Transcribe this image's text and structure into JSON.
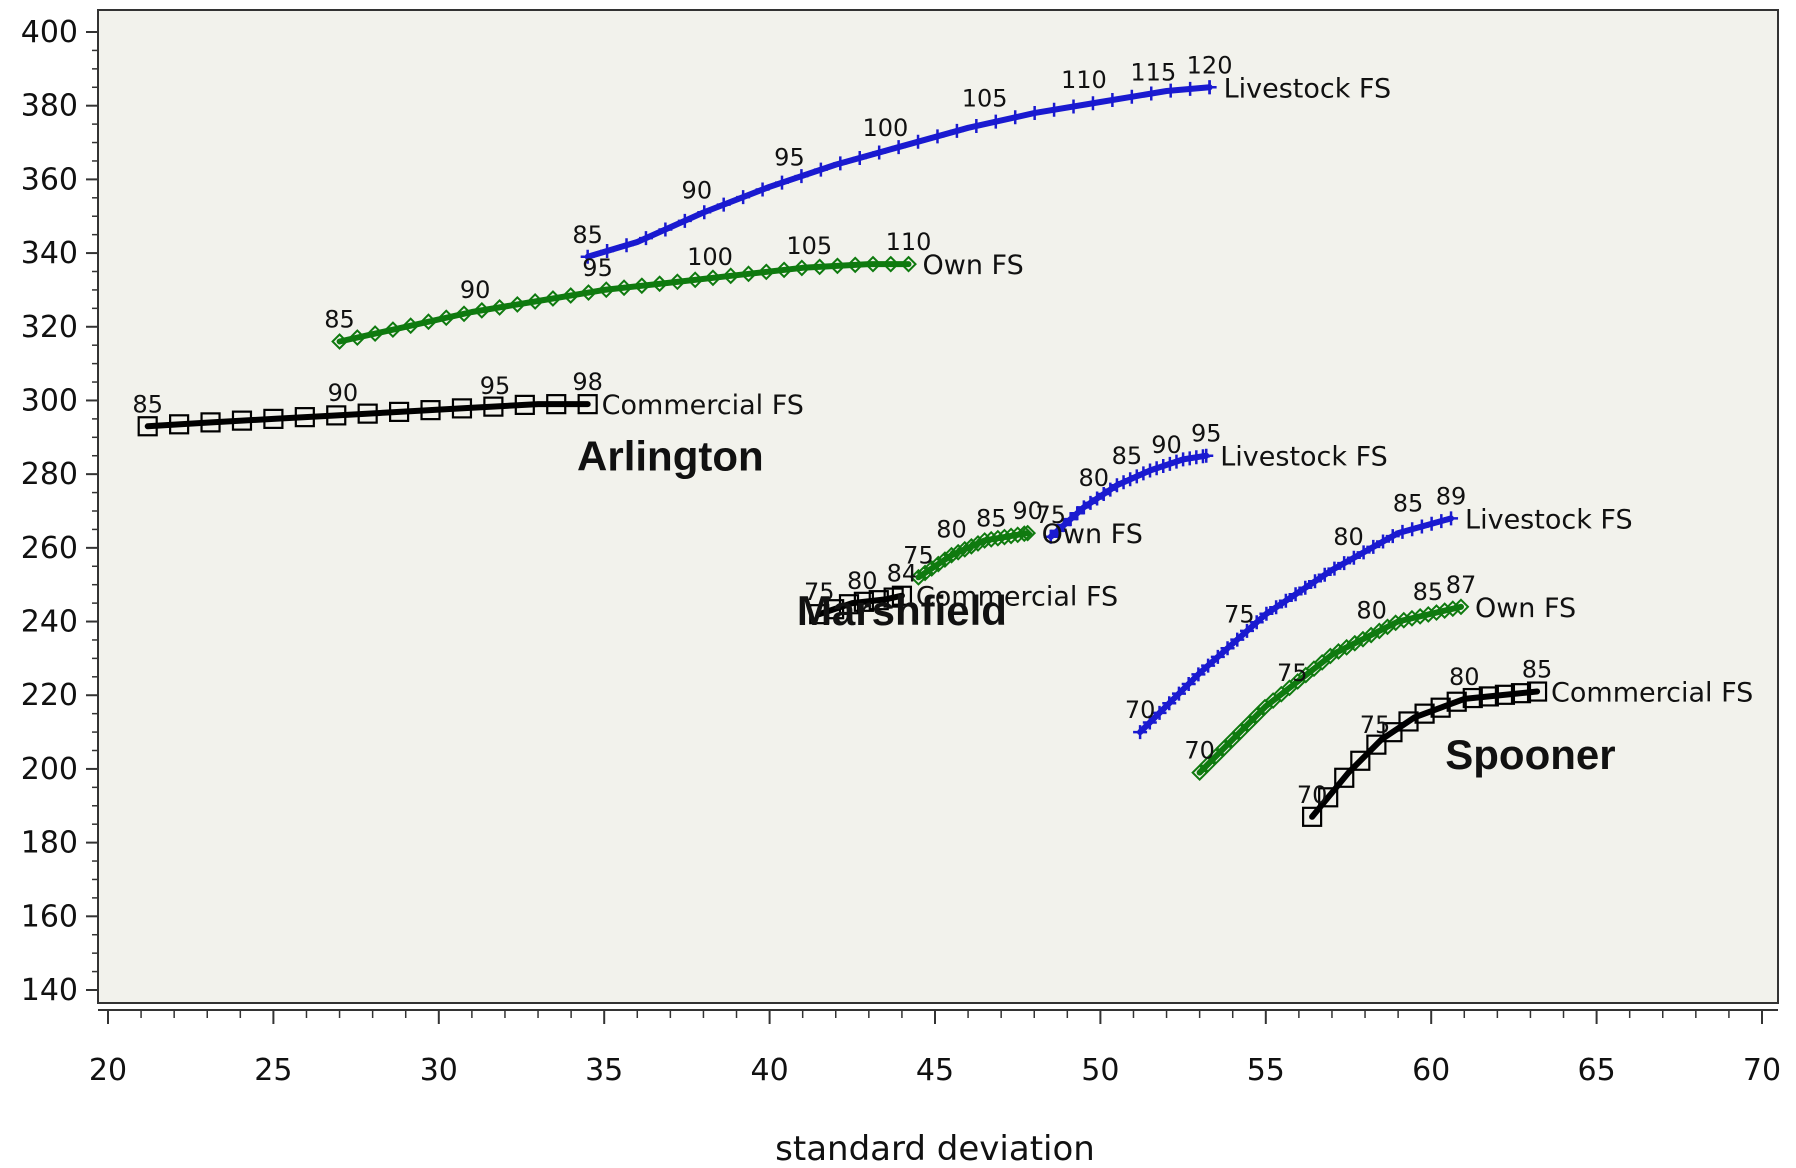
{
  "chart_data": {
    "type": "line",
    "xlabel": "standard deviation",
    "ylabel": "",
    "xlim": [
      20,
      70
    ],
    "ylim": [
      140,
      400
    ],
    "x_ticks": [
      "20",
      "25",
      "30",
      "35",
      "40",
      "45",
      "50",
      "55",
      "60",
      "65",
      "70"
    ],
    "y_ticks": [
      "140",
      "160",
      "180",
      "200",
      "220",
      "240",
      "260",
      "280",
      "300",
      "320",
      "340",
      "360",
      "380",
      "400"
    ],
    "grid": false,
    "colors": {
      "livestock": "#1a1ad0",
      "own": "#0f7a0f",
      "commercial": "#000000",
      "background": "#f2f2ec"
    },
    "stations": [
      {
        "name": "Arlington",
        "label_anchor": [
          37,
          281
        ]
      },
      {
        "name": "Marshfield",
        "label_anchor": [
          44,
          239
        ]
      },
      {
        "name": "Spooner",
        "label_anchor": [
          63,
          200
        ]
      }
    ],
    "series": [
      {
        "name": "Livestock FS",
        "group": "Arlington",
        "color_key": "livestock",
        "marker": "plus",
        "points": [
          [
            34.5,
            339
          ],
          [
            36,
            343
          ],
          [
            38,
            351
          ],
          [
            40,
            358
          ],
          [
            42,
            364
          ],
          [
            44,
            369
          ],
          [
            46,
            374
          ],
          [
            48,
            378
          ],
          [
            50,
            381
          ],
          [
            52,
            384
          ],
          [
            53.3,
            385
          ]
        ],
        "labels": [
          {
            "text": "85",
            "x": 34.5,
            "y": 339
          },
          {
            "text": "90",
            "x": 37.8,
            "y": 351
          },
          {
            "text": "95",
            "x": 40.6,
            "y": 360
          },
          {
            "text": "100",
            "x": 43.5,
            "y": 368
          },
          {
            "text": "105",
            "x": 46.5,
            "y": 376
          },
          {
            "text": "110",
            "x": 49.5,
            "y": 381
          },
          {
            "text": "115",
            "x": 51.6,
            "y": 383
          },
          {
            "text": "120",
            "x": 53.3,
            "y": 385
          }
        ]
      },
      {
        "name": "Own FS",
        "group": "Arlington",
        "color_key": "own",
        "marker": "diamond",
        "points": [
          [
            27,
            316
          ],
          [
            29,
            320
          ],
          [
            31,
            324
          ],
          [
            33,
            327
          ],
          [
            35,
            330
          ],
          [
            37,
            332
          ],
          [
            39,
            334
          ],
          [
            41,
            336
          ],
          [
            43,
            337
          ],
          [
            44.2,
            337
          ]
        ],
        "labels": [
          {
            "text": "85",
            "x": 27,
            "y": 316
          },
          {
            "text": "90",
            "x": 31.1,
            "y": 324
          },
          {
            "text": "95",
            "x": 34.8,
            "y": 330
          },
          {
            "text": "100",
            "x": 38.2,
            "y": 333
          },
          {
            "text": "105",
            "x": 41.2,
            "y": 336
          },
          {
            "text": "110",
            "x": 44.2,
            "y": 337
          }
        ]
      },
      {
        "name": "Commercial FS",
        "group": "Arlington",
        "color_key": "commercial",
        "marker": "square",
        "points": [
          [
            21.2,
            293
          ],
          [
            23,
            294
          ],
          [
            25,
            295
          ],
          [
            27,
            296
          ],
          [
            29,
            297
          ],
          [
            31,
            298
          ],
          [
            33,
            299
          ],
          [
            34.5,
            299
          ]
        ],
        "labels": [
          {
            "text": "85",
            "x": 21.2,
            "y": 293
          },
          {
            "text": "90",
            "x": 27.1,
            "y": 296
          },
          {
            "text": "95",
            "x": 31.7,
            "y": 298
          },
          {
            "text": "98",
            "x": 34.5,
            "y": 299
          }
        ]
      },
      {
        "name": "Livestock FS",
        "group": "Marshfield",
        "color_key": "livestock",
        "marker": "plus",
        "points": [
          [
            48.5,
            263
          ],
          [
            49.5,
            271
          ],
          [
            50.5,
            277
          ],
          [
            51.5,
            281
          ],
          [
            52.5,
            284
          ],
          [
            53.2,
            285
          ]
        ],
        "labels": [
          {
            "text": "75",
            "x": 48.5,
            "y": 263
          },
          {
            "text": "80",
            "x": 49.8,
            "y": 273
          },
          {
            "text": "85",
            "x": 50.8,
            "y": 279
          },
          {
            "text": "90",
            "x": 52,
            "y": 282
          },
          {
            "text": "95",
            "x": 53.2,
            "y": 285
          }
        ]
      },
      {
        "name": "Own FS",
        "group": "Marshfield",
        "color_key": "own",
        "marker": "diamond",
        "points": [
          [
            44.5,
            252
          ],
          [
            45.5,
            258
          ],
          [
            46.5,
            262
          ],
          [
            47.8,
            264
          ]
        ],
        "labels": [
          {
            "text": "75",
            "x": 44.5,
            "y": 252
          },
          {
            "text": "80",
            "x": 45.5,
            "y": 259
          },
          {
            "text": "85",
            "x": 46.7,
            "y": 262
          },
          {
            "text": "90",
            "x": 47.8,
            "y": 264
          }
        ]
      },
      {
        "name": "Commercial FS",
        "group": "Marshfield",
        "color_key": "commercial",
        "marker": "square",
        "points": [
          [
            41.5,
            242
          ],
          [
            42.5,
            245
          ],
          [
            43.5,
            246
          ],
          [
            44,
            247
          ]
        ],
        "labels": [
          {
            "text": "75",
            "x": 41.5,
            "y": 242
          },
          {
            "text": "80",
            "x": 42.8,
            "y": 245
          },
          {
            "text": "84",
            "x": 44,
            "y": 247
          }
        ]
      },
      {
        "name": "Livestock FS",
        "group": "Spooner",
        "color_key": "livestock",
        "marker": "plus",
        "points": [
          [
            51.2,
            210
          ],
          [
            53,
            226
          ],
          [
            55,
            242
          ],
          [
            57,
            254
          ],
          [
            59,
            264
          ],
          [
            60.6,
            268
          ]
        ],
        "labels": [
          {
            "text": "70",
            "x": 51.2,
            "y": 210
          },
          {
            "text": "75",
            "x": 54.2,
            "y": 236
          },
          {
            "text": "80",
            "x": 57.5,
            "y": 257
          },
          {
            "text": "85",
            "x": 59.3,
            "y": 266
          },
          {
            "text": "89",
            "x": 60.6,
            "y": 268
          }
        ]
      },
      {
        "name": "Own FS",
        "group": "Spooner",
        "color_key": "own",
        "marker": "diamond",
        "points": [
          [
            53,
            199
          ],
          [
            55,
            217
          ],
          [
            57,
            231
          ],
          [
            59,
            240
          ],
          [
            60.9,
            244
          ]
        ],
        "labels": [
          {
            "text": "70",
            "x": 53,
            "y": 199
          },
          {
            "text": "75",
            "x": 55.8,
            "y": 220
          },
          {
            "text": "80",
            "x": 58.2,
            "y": 237
          },
          {
            "text": "85",
            "x": 59.9,
            "y": 242
          },
          {
            "text": "87",
            "x": 60.9,
            "y": 244
          }
        ]
      },
      {
        "name": "Commercial FS",
        "group": "Spooner",
        "color_key": "commercial",
        "marker": "square",
        "points": [
          [
            56.4,
            187
          ],
          [
            57.5,
            199
          ],
          [
            58.5,
            208
          ],
          [
            59.5,
            214
          ],
          [
            61,
            219
          ],
          [
            63.2,
            221
          ]
        ],
        "labels": [
          {
            "text": "70",
            "x": 56.4,
            "y": 187
          },
          {
            "text": "75",
            "x": 58.3,
            "y": 206
          },
          {
            "text": "80",
            "x": 61,
            "y": 219
          },
          {
            "text": "85",
            "x": 63.2,
            "y": 221
          }
        ]
      }
    ]
  }
}
